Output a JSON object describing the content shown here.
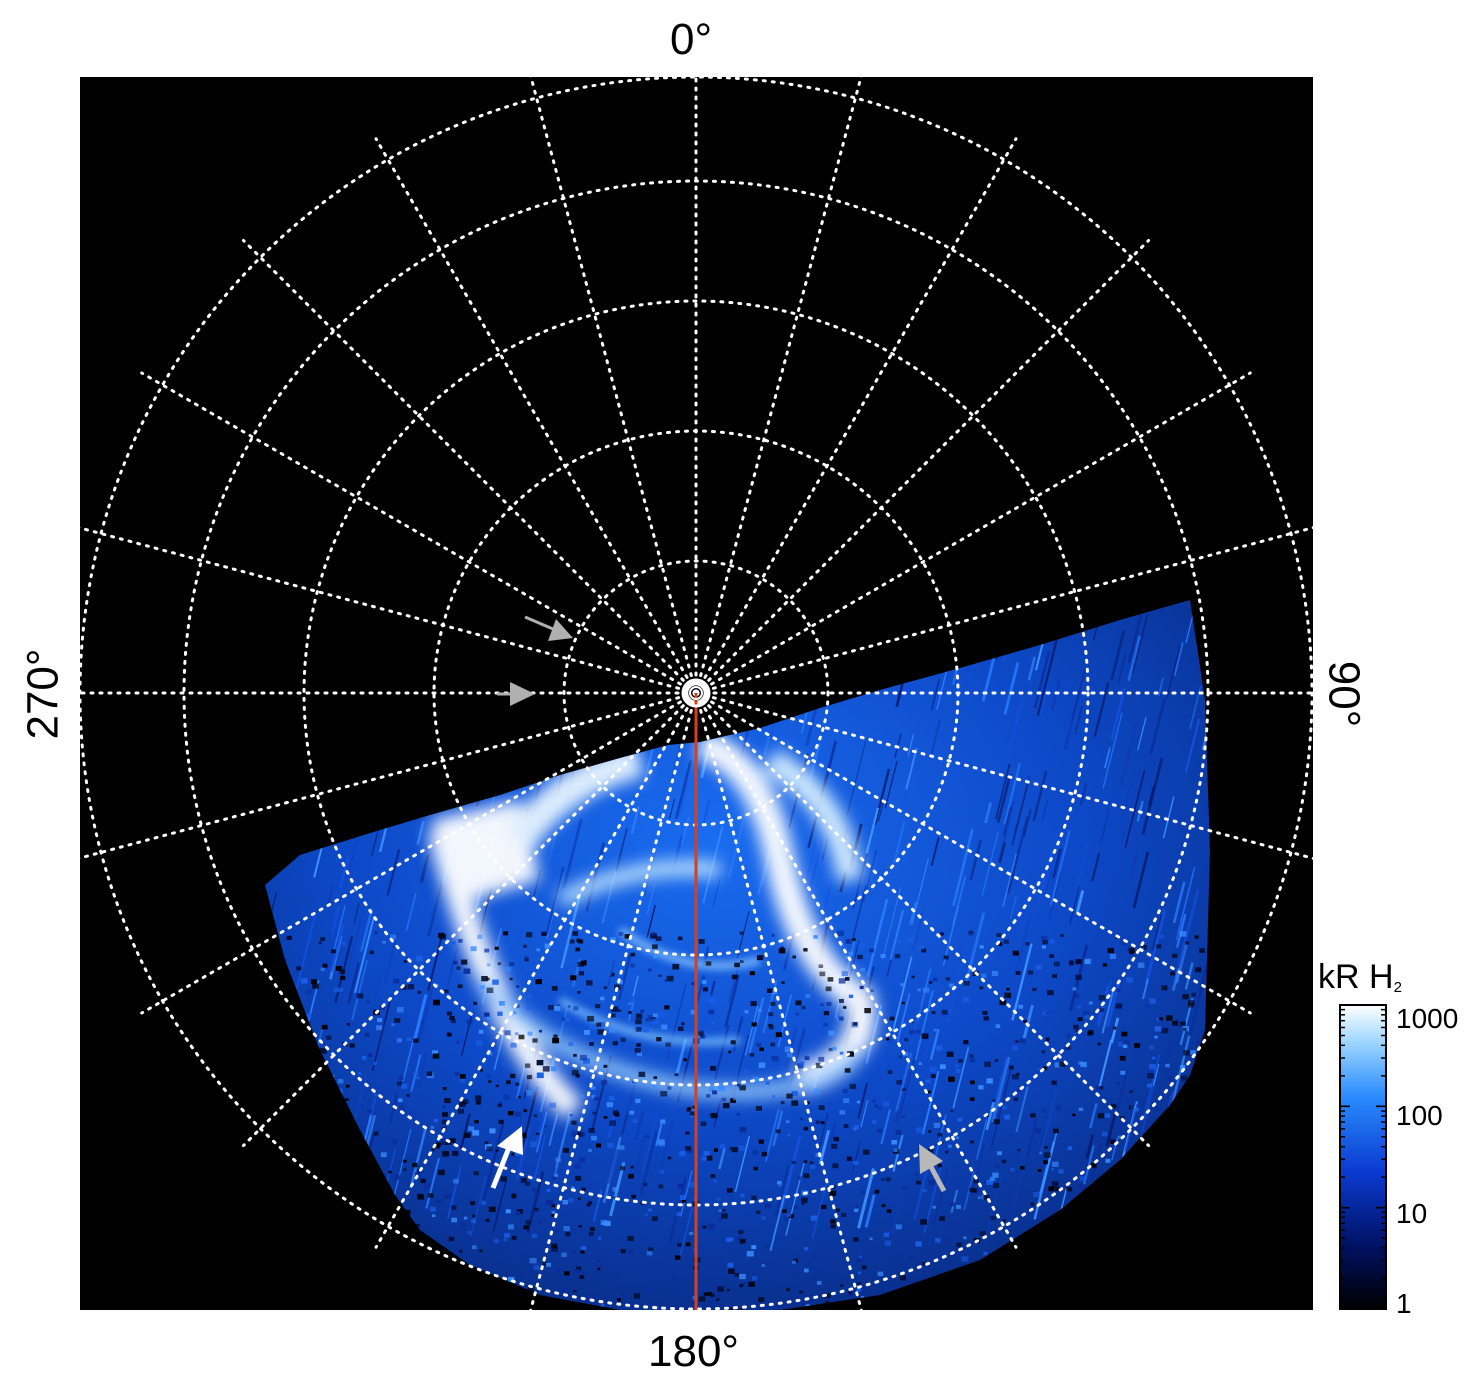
{
  "figure": {
    "axis_labels": {
      "top": "0°",
      "right": "90°",
      "bottom": "180°",
      "left": "270°"
    },
    "colorbar": {
      "title": "kR H",
      "title_subscript": "2",
      "ticks": [
        "1000",
        "100",
        "10",
        "1"
      ],
      "scale": "log",
      "colors": [
        "#000000",
        "#001060",
        "#0a3ad0",
        "#2a8cff",
        "#9fd6ff",
        "#ffffff"
      ]
    },
    "colors": {
      "background": "#000000",
      "grid": "#ffffff",
      "meridian_line": "#d8401a",
      "arrow_white": "#ffffff",
      "arrow_gray": "#b0b0b0"
    },
    "grid": {
      "style": "dotted",
      "meridians_count": 24,
      "parallels_count": 5
    },
    "icons": [
      "pole-marker-icon",
      "arrow-icon"
    ]
  }
}
